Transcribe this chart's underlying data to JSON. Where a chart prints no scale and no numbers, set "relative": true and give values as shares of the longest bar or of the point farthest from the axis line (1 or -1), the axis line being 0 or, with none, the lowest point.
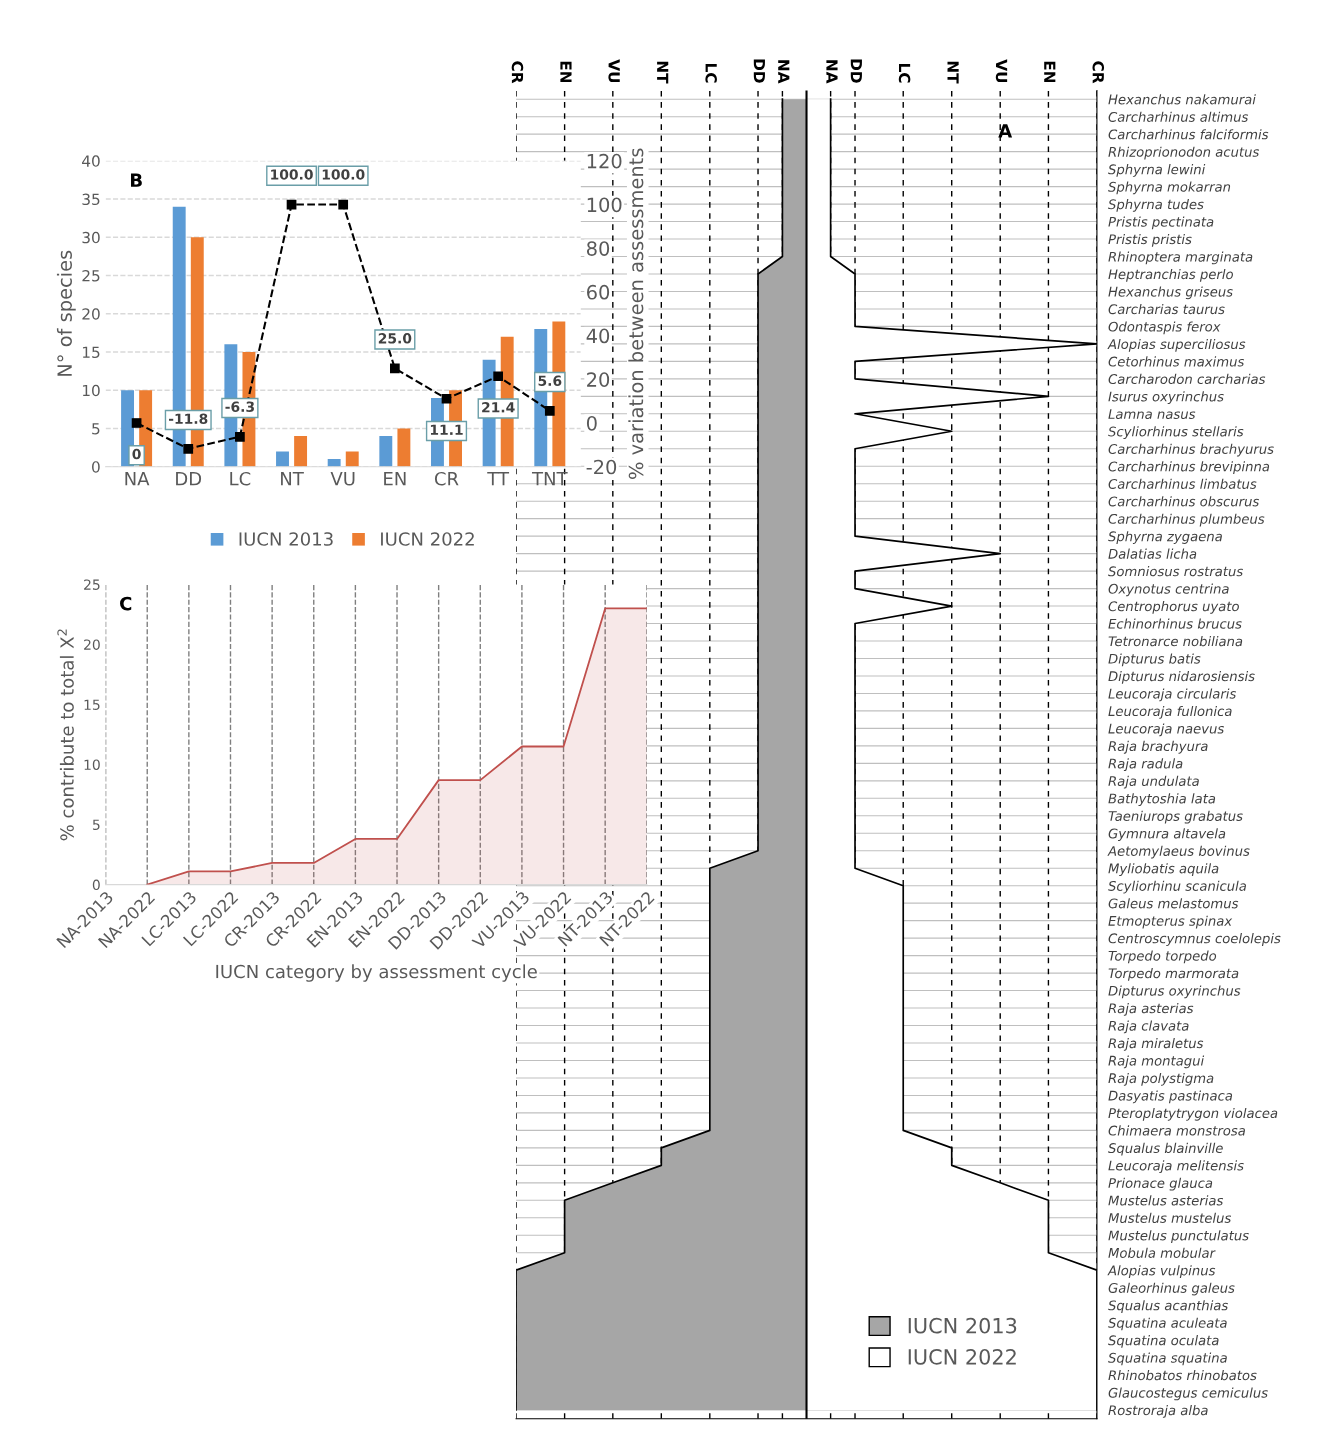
{
  "chart_data": [
    {
      "type": "area",
      "orientation": "horizontal",
      "annotations": [
        "A"
      ],
      "categories": [
        "Hexanchus nakamurai",
        "Carcharhinus altimus",
        "Carcharhinus falciformis",
        "Rhizoprionodon acutus",
        "Sphyrna lewini",
        "Sphyrna mokarran",
        "Sphyrna tudes",
        "Pristis pectinata",
        "Pristis pristis",
        "Rhinoptera marginata",
        "Heptranchias perlo",
        "Hexanchus griseus",
        "Carcharias taurus",
        "Odontaspis ferox",
        "Alopias superciliosus",
        "Cetorhinus maximus",
        "Carcharodon carcharias",
        "Isurus oxyrinchus",
        "Lamna nasus",
        "Scyliorhinus stellaris",
        "Carcharhinus brachyurus",
        "Carcharhinus brevipinna",
        "Carcharhinus limbatus",
        "Carcharhinus obscurus",
        "Carcharhinus plumbeus",
        "Sphyrna zygaena",
        "Dalatias licha",
        "Somniosus rostratus",
        "Oxynotus centrina",
        "Centrophorus uyato",
        "Echinorhinus brucus",
        "Tetronarce nobiliana",
        "Dipturus batis",
        "Dipturus nidarosiensis",
        "Leucoraja circularis",
        "Leucoraja fullonica",
        "Leucoraja naevus",
        "Raja brachyura",
        "Raja radula",
        "Raja undulata",
        "Bathytoshia lata",
        "Taeniurops grabatus",
        "Gymnura altavela",
        "Aetomylaeus bovinus",
        "Myliobatis aquila",
        "Scyliorhinu scanicula",
        "Galeus melastomus",
        "Etmopterus spinax",
        "Centroscymnus coelolepis",
        "Torpedo torpedo",
        "Torpedo marmorata",
        "Dipturus oxyrinchus",
        "Raja asterias",
        "Raja clavata",
        "Raja miraletus",
        "Raja montagui",
        "Raja polystigma",
        "Dasyatis pastinaca",
        "Pteroplatytrygon violacea",
        "Chimaera monstrosa",
        "Squalus blainville",
        "Leucoraja melitensis",
        "Prionace glauca",
        "Mustelus asterias",
        "Mustelus mustelus",
        "Mustelus punctulatus",
        "Mobula mobular",
        "Alopias vulpinus",
        "Galeorhinus galeus",
        "Squalus acanthias",
        "Squatina aculeata",
        "Squatina oculata",
        "Squatina squatina",
        "Rhinobatos rhinobatos",
        "Glaucostegus cemiculus",
        "Rostroraja alba"
      ],
      "series": [
        {
          "name": "IUCN 2013",
          "type": "area",
          "color": "#a6a6a6",
          "values": [
            -0.083,
            -0.083,
            -0.083,
            -0.083,
            -0.083,
            -0.083,
            -0.083,
            -0.083,
            -0.083,
            -0.083,
            -0.167,
            -0.167,
            -0.167,
            -0.167,
            -0.167,
            -0.167,
            -0.167,
            -0.167,
            -0.167,
            -0.167,
            -0.167,
            -0.167,
            -0.167,
            -0.167,
            -0.167,
            -0.167,
            -0.167,
            -0.167,
            -0.167,
            -0.167,
            -0.167,
            -0.167,
            -0.167,
            -0.167,
            -0.167,
            -0.167,
            -0.167,
            -0.167,
            -0.167,
            -0.167,
            -0.167,
            -0.167,
            -0.167,
            -0.167,
            -0.333,
            -0.333,
            -0.333,
            -0.333,
            -0.333,
            -0.333,
            -0.333,
            -0.333,
            -0.333,
            -0.333,
            -0.333,
            -0.333,
            -0.333,
            -0.333,
            -0.333,
            -0.333,
            -0.5,
            -0.5,
            -0.667,
            -0.833,
            -0.833,
            -0.833,
            -0.833,
            -1,
            -1,
            -1,
            -1,
            -1,
            -1,
            -1,
            -1,
            -1
          ]
        },
        {
          "name": "IUCN 2022",
          "type": "area",
          "color": "#ffffff",
          "values": [
            0.083,
            0.083,
            0.083,
            0.083,
            0.083,
            0.083,
            0.083,
            0.083,
            0.083,
            0.083,
            0.167,
            0.167,
            0.167,
            0.167,
            1,
            0.167,
            0.167,
            0.833,
            0.167,
            0.5,
            0.167,
            0.167,
            0.167,
            0.167,
            0.167,
            0.167,
            0.667,
            0.167,
            0.167,
            0.5,
            0.167,
            0.167,
            0.167,
            0.167,
            0.167,
            0.167,
            0.167,
            0.167,
            0.167,
            0.167,
            0.167,
            0.167,
            0.167,
            0.167,
            0.167,
            0.333,
            0.333,
            0.333,
            0.333,
            0.333,
            0.333,
            0.333,
            0.333,
            0.333,
            0.333,
            0.333,
            0.333,
            0.333,
            0.333,
            0.333,
            0.5,
            0.5,
            0.667,
            0.833,
            0.833,
            0.833,
            0.833,
            1,
            1,
            1,
            1,
            1,
            1,
            1,
            1,
            1
          ]
        }
      ],
      "relative": true,
      "ref_lines": [
        {
          "axis": "x",
          "value": 0,
          "color": "#000000"
        },
        {
          "axis": "x",
          "value": -1,
          "label": "CR",
          "line_style": "dashed"
        },
        {
          "axis": "x",
          "value": -0.833,
          "label": "EN",
          "line_style": "dashed"
        },
        {
          "axis": "x",
          "value": -0.667,
          "label": "VU",
          "line_style": "dashed"
        },
        {
          "axis": "x",
          "value": -0.5,
          "label": "NT",
          "line_style": "dashed"
        },
        {
          "axis": "x",
          "value": -0.333,
          "label": "LC",
          "line_style": "dashed"
        },
        {
          "axis": "x",
          "value": -0.167,
          "label": "DD",
          "line_style": "dashed"
        },
        {
          "axis": "x",
          "value": -0.083,
          "label": "NA",
          "line_style": "dashed"
        },
        {
          "axis": "x",
          "value": 0.083,
          "label": "NA",
          "line_style": "dashed"
        },
        {
          "axis": "x",
          "value": 0.167,
          "label": "DD",
          "line_style": "dashed"
        },
        {
          "axis": "x",
          "value": 0.333,
          "label": "LC",
          "line_style": "dashed"
        },
        {
          "axis": "x",
          "value": 0.5,
          "label": "NT",
          "line_style": "dashed"
        },
        {
          "axis": "x",
          "value": 0.667,
          "label": "VU",
          "line_style": "dashed"
        },
        {
          "axis": "x",
          "value": 0.833,
          "label": "EN",
          "line_style": "dashed"
        },
        {
          "axis": "x",
          "value": 1,
          "label": "CR",
          "line_style": "dashed"
        }
      ],
      "grid": "y",
      "legend": "bottom right"
    },
    {
      "type": "bar",
      "annotations": [
        "B"
      ],
      "ylabel": "N° of species",
      "y2label": "% variation between assessments",
      "categories": [
        "NA",
        "DD",
        "LC",
        "NT",
        "VU",
        "EN",
        "CR",
        "TT",
        "TNT"
      ],
      "series": [
        {
          "name": "IUCN 2013",
          "color": "#5b9bd5",
          "values": [
            10,
            34,
            16,
            2,
            1,
            4,
            9,
            14,
            18
          ]
        },
        {
          "name": "IUCN 2022",
          "color": "#ed7d31",
          "values": [
            10,
            30,
            15,
            4,
            2,
            5,
            10,
            17,
            19
          ]
        },
        {
          "type": "line",
          "axis": "y2",
          "color": "#000000",
          "marker": "square",
          "line_style": "dashed",
          "values": [
            0,
            -11.8,
            -6.3,
            100,
            100,
            25,
            11.1,
            21.4,
            5.6
          ],
          "value_labels": [
            "0",
            "-11.8",
            "-6.3",
            "100.0",
            "100.0",
            "25.0",
            "11.1",
            "21.4",
            "5.6"
          ]
        }
      ],
      "ylim": [
        0,
        40
      ],
      "yticks": [
        0,
        5,
        10,
        15,
        20,
        25,
        30,
        35,
        40
      ],
      "y2lim": [
        -20,
        120
      ],
      "y2ticks": [
        -20,
        0,
        20,
        40,
        60,
        80,
        100,
        120
      ],
      "grid": "y",
      "legend": "bottom"
    },
    {
      "type": "area",
      "annotations": [
        "C"
      ],
      "xlabel": "IUCN category by assessment cycle",
      "ylabel": "% contribute to total X$^{2}$",
      "categories": [
        "NA-2013",
        "NA-2022",
        "LC-2013",
        "LC-2022",
        "CR-2013",
        "CR-2022",
        "EN-2013",
        "EN-2022",
        "DD-2013",
        "DD-2022",
        "VU-2013",
        "VU-2022",
        "NT-2013",
        "NT-2022"
      ],
      "values": [
        null,
        0,
        1.1,
        1.1,
        1.8,
        1.8,
        3.8,
        3.8,
        8.7,
        8.7,
        11.5,
        11.5,
        23,
        23
      ],
      "color": "#c0504d",
      "ylim": [
        0,
        25
      ],
      "yticks": [
        0,
        5,
        10,
        15,
        20,
        25
      ],
      "grid": "x"
    }
  ]
}
